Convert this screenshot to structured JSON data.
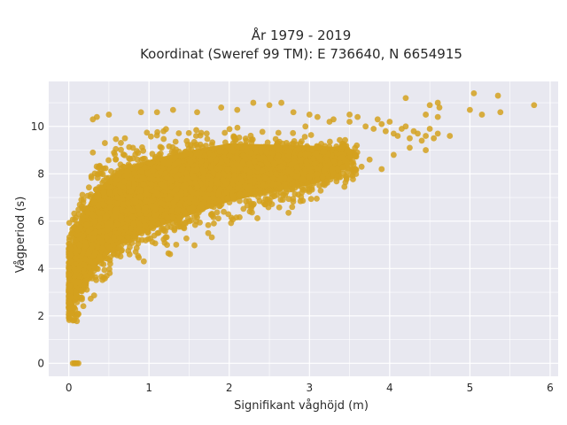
{
  "chart_data": {
    "type": "scatter",
    "title_line1": "År 1979 - 2019",
    "title_line2": "Koordinat (Sweref 99 TM): E 736640, N 6654915",
    "xlabel": "Signifikant våghöjd (m)",
    "ylabel": "Vågperiod (s)",
    "xlim": [
      -0.25,
      6.1
    ],
    "ylim": [
      -0.55,
      11.9
    ],
    "xticks": [
      0,
      1,
      2,
      3,
      4,
      5,
      6
    ],
    "yticks": [
      0,
      2,
      4,
      6,
      8,
      10
    ],
    "grid": true,
    "legend": "none",
    "colors": {
      "marker": "#D4A11E",
      "plot_background": "#E8E8F0",
      "grid": "#FFFFFF"
    },
    "dense_cloud": {
      "x_min": 0.0,
      "x_max": 3.6,
      "lower_edge": [
        [
          0.02,
          1.2
        ],
        [
          0.1,
          1.2
        ],
        [
          0.3,
          2.2
        ],
        [
          0.6,
          3.2
        ],
        [
          1.0,
          3.8
        ],
        [
          1.5,
          4.5
        ],
        [
          2.0,
          5.2
        ],
        [
          2.5,
          5.8
        ],
        [
          3.0,
          6.3
        ],
        [
          3.6,
          7.2
        ]
      ],
      "upper_edge": [
        [
          0.02,
          6.6
        ],
        [
          0.1,
          7.5
        ],
        [
          0.3,
          9.0
        ],
        [
          0.6,
          10.0
        ],
        [
          1.0,
          10.2
        ],
        [
          1.5,
          10.4
        ],
        [
          2.0,
          10.5
        ],
        [
          2.5,
          10.2
        ],
        [
          3.0,
          9.9
        ],
        [
          3.6,
          9.5
        ]
      ],
      "center": [
        [
          0.02,
          3.2
        ],
        [
          0.1,
          4.0
        ],
        [
          0.3,
          5.3
        ],
        [
          0.6,
          6.3
        ],
        [
          1.0,
          7.0
        ],
        [
          1.5,
          7.6
        ],
        [
          2.0,
          8.1
        ],
        [
          2.5,
          8.3
        ],
        [
          3.0,
          8.5
        ],
        [
          3.6,
          8.7
        ]
      ]
    },
    "series": [
      {
        "x": [
          0.05,
          0.07,
          0.08,
          0.1,
          0.12,
          0.3,
          0.35,
          0.5,
          0.9,
          1.1,
          1.3,
          1.6,
          1.9,
          2.1,
          2.3,
          2.5,
          2.65,
          2.8,
          3.0,
          3.1,
          3.3,
          3.5,
          3.6,
          3.7,
          3.8,
          3.85,
          3.9,
          3.95,
          4.0,
          4.05,
          4.1,
          4.15,
          4.2,
          4.25,
          4.3,
          4.35,
          4.4,
          4.45,
          4.5,
          4.55,
          4.6,
          4.75,
          3.55,
          3.65,
          3.75,
          3.9,
          4.05,
          4.25,
          4.45,
          2.95,
          3.25,
          3.5,
          4.2,
          4.6,
          5.0,
          5.05,
          5.15,
          5.35,
          5.38,
          5.8,
          4.5,
          4.6,
          4.45,
          4.62,
          0.3,
          0.4,
          0.45,
          0.7
        ],
        "y": [
          0.0,
          0.0,
          0.0,
          0.0,
          0.0,
          10.3,
          10.4,
          10.5,
          10.6,
          10.6,
          10.7,
          10.6,
          10.8,
          10.7,
          11.0,
          10.9,
          11.0,
          10.6,
          10.5,
          10.4,
          10.3,
          10.2,
          10.4,
          10.0,
          9.9,
          10.3,
          10.1,
          9.8,
          10.2,
          9.7,
          9.6,
          9.9,
          10.0,
          9.5,
          9.8,
          9.7,
          9.4,
          9.6,
          9.9,
          9.5,
          9.7,
          9.6,
          8.4,
          8.3,
          8.6,
          8.2,
          8.8,
          9.1,
          9.0,
          10.0,
          10.2,
          10.5,
          11.2,
          11.0,
          10.7,
          11.4,
          10.5,
          11.3,
          10.6,
          10.9,
          10.9,
          10.4,
          10.5,
          10.8,
          8.9,
          8.2,
          9.3,
          9.5
        ]
      }
    ]
  }
}
